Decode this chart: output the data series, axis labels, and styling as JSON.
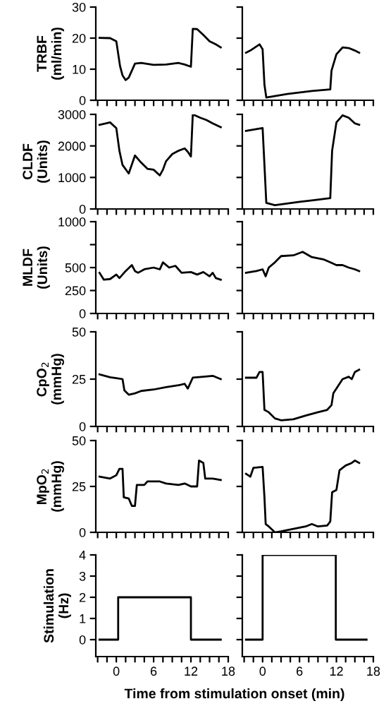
{
  "chart_data": [
    {
      "type": "line",
      "ylabel": "TRBF\n(ml/min)",
      "color": "#000000",
      "ylim": [
        0,
        30
      ],
      "yticks": [
        0,
        10,
        20,
        30
      ],
      "xlim": [
        -3.3,
        18
      ],
      "xticks": [
        {
          "value": -3,
          "label": null
        },
        {
          "value": -1.5,
          "label": null
        },
        0,
        {
          "value": 1.5,
          "label": null
        },
        {
          "value": 3,
          "label": null
        },
        {
          "value": 4.5,
          "label": null
        },
        6,
        {
          "value": 7.5,
          "label": null
        },
        {
          "value": 9,
          "label": null
        },
        {
          "value": 10.5,
          "label": null
        },
        12,
        {
          "value": 13.5,
          "label": null
        },
        {
          "value": 15,
          "label": null
        },
        {
          "value": 16.5,
          "label": null
        },
        18
      ],
      "tick_labels": "y",
      "grid": false,
      "marker": "none",
      "line_style": "solid",
      "x": [
        -2.7,
        -1,
        0,
        0.6,
        1,
        1.5,
        2,
        2.5,
        3,
        4,
        6,
        8,
        10,
        11,
        12,
        12.3,
        13,
        14,
        15,
        16,
        16.8
      ],
      "values": [
        20.1,
        20,
        19,
        11,
        8,
        6.5,
        7.3,
        9.5,
        11.8,
        12,
        11.4,
        11.5,
        12,
        11.5,
        10.8,
        23,
        22.9,
        21,
        19,
        18,
        17
      ]
    },
    {
      "type": "line",
      "color": "#000000",
      "ylim": [
        0,
        30
      ],
      "yticks": [
        0,
        10,
        20,
        30
      ],
      "xlim": [
        -3.3,
        18
      ],
      "xticks": [
        {
          "value": -3,
          "label": null
        },
        {
          "value": -1.5,
          "label": null
        },
        0,
        {
          "value": 1.5,
          "label": null
        },
        {
          "value": 3,
          "label": null
        },
        {
          "value": 4.5,
          "label": null
        },
        6,
        {
          "value": 7.5,
          "label": null
        },
        {
          "value": 9,
          "label": null
        },
        {
          "value": 10.5,
          "label": null
        },
        12,
        {
          "value": 13.5,
          "label": null
        },
        {
          "value": 15,
          "label": null
        },
        {
          "value": 16.5,
          "label": null
        },
        18
      ],
      "tick_labels": false,
      "grid": false,
      "marker": "none",
      "line_style": "solid",
      "x": [
        -2.7,
        -2,
        -0.5,
        0,
        0.3,
        0.6,
        4,
        8,
        11,
        11.2,
        12,
        13,
        14,
        15,
        15.7
      ],
      "values": [
        15.3,
        16,
        18,
        16.4,
        5,
        0.9,
        2,
        3,
        3.5,
        9.5,
        14.8,
        17,
        16.8,
        16,
        15.3
      ]
    },
    {
      "type": "line",
      "ylabel": "CLDF\n(Units)",
      "color": "#000000",
      "ylim": [
        0,
        3000
      ],
      "yticks": [
        0,
        1000,
        2000,
        3000
      ],
      "xlim": [
        -3.3,
        18
      ],
      "xticks": [
        {
          "value": -3,
          "label": null
        },
        {
          "value": -1.5,
          "label": null
        },
        0,
        {
          "value": 1.5,
          "label": null
        },
        {
          "value": 3,
          "label": null
        },
        {
          "value": 4.5,
          "label": null
        },
        6,
        {
          "value": 7.5,
          "label": null
        },
        {
          "value": 9,
          "label": null
        },
        {
          "value": 10.5,
          "label": null
        },
        12,
        {
          "value": 13.5,
          "label": null
        },
        {
          "value": 15,
          "label": null
        },
        {
          "value": 16.5,
          "label": null
        },
        18
      ],
      "tick_labels": "y",
      "grid": false,
      "marker": "none",
      "line_style": "solid",
      "x": [
        -2.7,
        -1,
        0,
        0.5,
        1,
        2,
        3,
        4,
        5,
        6,
        7,
        7.5,
        8,
        9,
        10,
        11,
        11.5,
        12,
        12.3,
        13.5,
        14.5,
        15.5,
        16.8
      ],
      "values": [
        2670,
        2745,
        2565,
        1845,
        1395,
        1125,
        1695,
        1470,
        1275,
        1245,
        1065,
        1245,
        1515,
        1740,
        1845,
        1920,
        1815,
        1665,
        3000,
        2895,
        2820,
        2715,
        2595
      ]
    },
    {
      "type": "line",
      "color": "#000000",
      "ylim": [
        0,
        3000
      ],
      "yticks": [
        0,
        1000,
        2000,
        3000
      ],
      "xlim": [
        -3.3,
        18
      ],
      "xticks": [
        {
          "value": -3,
          "label": null
        },
        {
          "value": -1.5,
          "label": null
        },
        0,
        {
          "value": 1.5,
          "label": null
        },
        {
          "value": 3,
          "label": null
        },
        {
          "value": 4.5,
          "label": null
        },
        6,
        {
          "value": 7.5,
          "label": null
        },
        {
          "value": 9,
          "label": null
        },
        {
          "value": 10.5,
          "label": null
        },
        12,
        {
          "value": 13.5,
          "label": null
        },
        {
          "value": 15,
          "label": null
        },
        {
          "value": 16.5,
          "label": null
        },
        18
      ],
      "tick_labels": false,
      "grid": false,
      "marker": "none",
      "line_style": "solid",
      "x": [
        -2.7,
        0,
        0.3,
        0.6,
        2,
        6,
        8,
        11,
        11.3,
        12,
        13,
        14,
        15,
        15.7
      ],
      "values": [
        2475,
        2565,
        1395,
        195,
        120,
        225,
        270,
        345,
        1845,
        2745,
        2970,
        2895,
        2715,
        2670
      ]
    },
    {
      "type": "line",
      "ylabel": "MLDF\n(Units)",
      "color": "#000000",
      "ylim": [
        0,
        1000
      ],
      "yticks": [
        0,
        250,
        500,
        {
          "value": 750,
          "label": null
        },
        1000
      ],
      "xlim": [
        -3.3,
        18
      ],
      "xticks": [
        {
          "value": -3,
          "label": null
        },
        {
          "value": -1.5,
          "label": null
        },
        0,
        {
          "value": 1.5,
          "label": null
        },
        {
          "value": 3,
          "label": null
        },
        {
          "value": 4.5,
          "label": null
        },
        6,
        {
          "value": 7.5,
          "label": null
        },
        {
          "value": 9,
          "label": null
        },
        {
          "value": 10.5,
          "label": null
        },
        12,
        {
          "value": 13.5,
          "label": null
        },
        {
          "value": 15,
          "label": null
        },
        {
          "value": 16.5,
          "label": null
        },
        18
      ],
      "tick_labels": "y",
      "grid": false,
      "marker": "none",
      "line_style": "solid",
      "x": [
        -2.7,
        -2,
        -1,
        0,
        0.5,
        1.5,
        2.5,
        3,
        3.5,
        4.5,
        6,
        7,
        7.5,
        8.5,
        9.5,
        10.5,
        12,
        13,
        14,
        15,
        15.5,
        16,
        16.8
      ],
      "values": [
        443,
        368,
        375,
        424,
        386,
        462,
        527,
        462,
        443,
        481,
        500,
        481,
        557,
        500,
        519,
        443,
        451,
        424,
        451,
        405,
        443,
        386,
        368
      ]
    },
    {
      "type": "line",
      "color": "#000000",
      "ylim": [
        0,
        1000
      ],
      "yticks": [
        0,
        250,
        500,
        {
          "value": 750,
          "label": null
        },
        1000
      ],
      "xlim": [
        -3.3,
        18
      ],
      "xticks": [
        {
          "value": -3,
          "label": null
        },
        {
          "value": -1.5,
          "label": null
        },
        0,
        {
          "value": 1.5,
          "label": null
        },
        {
          "value": 3,
          "label": null
        },
        {
          "value": 4.5,
          "label": null
        },
        6,
        {
          "value": 7.5,
          "label": null
        },
        {
          "value": 9,
          "label": null
        },
        {
          "value": 10.5,
          "label": null
        },
        12,
        {
          "value": 13.5,
          "label": null
        },
        {
          "value": 15,
          "label": null
        },
        {
          "value": 16.5,
          "label": null
        },
        18
      ],
      "tick_labels": false,
      "grid": false,
      "marker": "none",
      "line_style": "solid",
      "x": [
        -2.7,
        -1,
        0,
        0.5,
        1,
        2,
        3,
        5,
        6.5,
        8,
        10,
        11,
        12,
        13,
        14,
        15,
        15.7
      ],
      "values": [
        443,
        462,
        481,
        405,
        500,
        557,
        625,
        633,
        671,
        614,
        587,
        557,
        527,
        527,
        500,
        481,
        462
      ]
    },
    {
      "type": "line",
      "ylabel": "CpO$_{2}$\n(mmHg)",
      "color": "#000000",
      "ylim": [
        0,
        50
      ],
      "yticks": [
        0,
        25,
        50
      ],
      "xlim": [
        -3.3,
        18
      ],
      "xticks": [
        {
          "value": -3,
          "label": null
        },
        {
          "value": -1.5,
          "label": null
        },
        0,
        {
          "value": 1.5,
          "label": null
        },
        {
          "value": 3,
          "label": null
        },
        {
          "value": 4.5,
          "label": null
        },
        6,
        {
          "value": 7.5,
          "label": null
        },
        {
          "value": 9,
          "label": null
        },
        {
          "value": 10.5,
          "label": null
        },
        12,
        {
          "value": 13.5,
          "label": null
        },
        {
          "value": 15,
          "label": null
        },
        {
          "value": 16.5,
          "label": null
        },
        18
      ],
      "tick_labels": "y",
      "grid": false,
      "marker": "none",
      "line_style": "solid",
      "x": [
        -2.7,
        -1,
        0,
        1,
        1.3,
        2,
        3,
        4,
        6,
        8,
        10,
        11,
        11.5,
        12.3,
        14,
        15.5,
        16.8
      ],
      "values": [
        27.5,
        26,
        25.5,
        25,
        19,
        16.75,
        17.5,
        18.75,
        19.5,
        20.75,
        21.75,
        22.5,
        20,
        25.75,
        26.25,
        26.75,
        25
      ]
    },
    {
      "type": "line",
      "color": "#000000",
      "ylim": [
        0,
        50
      ],
      "yticks": [
        0,
        25,
        50
      ],
      "xlim": [
        -3.3,
        18
      ],
      "xticks": [
        {
          "value": -3,
          "label": null
        },
        {
          "value": -1.5,
          "label": null
        },
        0,
        {
          "value": 1.5,
          "label": null
        },
        {
          "value": 3,
          "label": null
        },
        {
          "value": 4.5,
          "label": null
        },
        6,
        {
          "value": 7.5,
          "label": null
        },
        {
          "value": 9,
          "label": null
        },
        {
          "value": 10.5,
          "label": null
        },
        12,
        {
          "value": 13.5,
          "label": null
        },
        {
          "value": 15,
          "label": null
        },
        {
          "value": 16.5,
          "label": null
        },
        18
      ],
      "tick_labels": false,
      "grid": false,
      "marker": "none",
      "line_style": "solid",
      "x": [
        -2.7,
        -1,
        -0.5,
        0,
        0.3,
        1,
        2,
        3,
        5,
        7,
        9,
        10.5,
        11.2,
        11.5,
        13,
        14,
        14.5,
        15,
        15.7
      ],
      "values": [
        25.75,
        25.75,
        28.75,
        28.75,
        8.75,
        7.5,
        4.25,
        3.25,
        3.75,
        5.75,
        7.5,
        8.75,
        11.25,
        17.5,
        25,
        26.25,
        25,
        28.75,
        30
      ]
    },
    {
      "type": "line",
      "ylabel": "MpO$_{2}$\n(mmHg)",
      "color": "#000000",
      "ylim": [
        0,
        50
      ],
      "yticks": [
        0,
        25,
        50
      ],
      "xlim": [
        -3.3,
        18
      ],
      "xticks": [
        {
          "value": -3,
          "label": null
        },
        {
          "value": -1.5,
          "label": null
        },
        0,
        {
          "value": 1.5,
          "label": null
        },
        {
          "value": 3,
          "label": null
        },
        {
          "value": 4.5,
          "label": null
        },
        6,
        {
          "value": 7.5,
          "label": null
        },
        {
          "value": 9,
          "label": null
        },
        {
          "value": 10.5,
          "label": null
        },
        12,
        {
          "value": 13.5,
          "label": null
        },
        {
          "value": 15,
          "label": null
        },
        {
          "value": 16.5,
          "label": null
        },
        18
      ],
      "tick_labels": "y",
      "grid": false,
      "marker": "none",
      "line_style": "solid",
      "x": [
        -2.7,
        -1,
        0,
        0.5,
        1,
        1.2,
        2,
        2.5,
        3,
        3.3,
        4.5,
        5,
        7,
        8,
        10,
        11,
        12,
        13,
        13.3,
        14,
        14.3,
        15.5,
        16.8
      ],
      "values": [
        30.3,
        29.3,
        31.1,
        34.6,
        34.6,
        19.1,
        18.4,
        14.4,
        14.4,
        25.8,
        25.8,
        27.7,
        27.7,
        26.6,
        25.8,
        26.6,
        25,
        25,
        39.1,
        37.8,
        29.3,
        29.3,
        28.5
      ]
    },
    {
      "type": "line",
      "color": "#000000",
      "ylim": [
        0,
        50
      ],
      "yticks": [
        0,
        25,
        50
      ],
      "xlim": [
        -3.3,
        18
      ],
      "xticks": [
        {
          "value": -3,
          "label": null
        },
        {
          "value": -1.5,
          "label": null
        },
        0,
        {
          "value": 1.5,
          "label": null
        },
        {
          "value": 3,
          "label": null
        },
        {
          "value": 4.5,
          "label": null
        },
        6,
        {
          "value": 7.5,
          "label": null
        },
        {
          "value": 9,
          "label": null
        },
        {
          "value": 10.5,
          "label": null
        },
        12,
        {
          "value": 13.5,
          "label": null
        },
        {
          "value": 15,
          "label": null
        },
        {
          "value": 16.5,
          "label": null
        },
        18
      ],
      "tick_labels": false,
      "grid": false,
      "marker": "none",
      "line_style": "solid",
      "x": [
        -2.7,
        -2,
        -1.5,
        0,
        0.3,
        0.5,
        1,
        2,
        3,
        5,
        7,
        8,
        9,
        10.5,
        11,
        11.3,
        12,
        12.5,
        13.5,
        14.5,
        15,
        15.7
      ],
      "values": [
        31.9,
        30.3,
        35.1,
        35.6,
        19.1,
        4.5,
        3.2,
        0,
        0.5,
        1.9,
        3.2,
        4.5,
        3.2,
        3.7,
        5.9,
        21.8,
        23.1,
        33.8,
        36.4,
        37.8,
        39.1,
        37.8
      ]
    },
    {
      "type": "line",
      "ylabel": "Stimulation\n(Hz)",
      "xlabel": "Time from stimulation onset (min)",
      "color": "#000000",
      "ylim": [
        -0.8,
        4
      ],
      "yticks": [
        0,
        1,
        2,
        3,
        4
      ],
      "xlim": [
        -3.3,
        18
      ],
      "xticks": [
        {
          "value": -3,
          "label": null
        },
        {
          "value": -1.5,
          "label": null
        },
        0,
        {
          "value": 1.5,
          "label": null
        },
        {
          "value": 3,
          "label": null
        },
        {
          "value": 4.5,
          "label": null
        },
        6,
        {
          "value": 7.5,
          "label": null
        },
        {
          "value": 9,
          "label": null
        },
        {
          "value": 10.5,
          "label": null
        },
        12,
        {
          "value": 13.5,
          "label": null
        },
        {
          "value": 15,
          "label": null
        },
        {
          "value": 16.5,
          "label": null
        },
        18
      ],
      "grid": false,
      "marker": "none",
      "line_style": "solid",
      "x": [
        -2.7,
        0.3,
        0.3,
        12,
        12,
        16.8
      ],
      "values": [
        0,
        0,
        2,
        2,
        0,
        0
      ]
    },
    {
      "type": "line",
      "color": "#000000",
      "ylim": [
        -0.8,
        4
      ],
      "yticks": [
        0,
        1,
        2,
        3,
        4
      ],
      "xlim": [
        -3.3,
        18
      ],
      "xticks": [
        {
          "value": -3,
          "label": null
        },
        {
          "value": -1.5,
          "label": null
        },
        0,
        {
          "value": 1.5,
          "label": null
        },
        {
          "value": 3,
          "label": null
        },
        {
          "value": 4.5,
          "label": null
        },
        6,
        {
          "value": 7.5,
          "label": null
        },
        {
          "value": 9,
          "label": null
        },
        {
          "value": 10.5,
          "label": null
        },
        12,
        {
          "value": 13.5,
          "label": null
        },
        {
          "value": 15,
          "label": null
        },
        {
          "value": 16.5,
          "label": null
        },
        18
      ],
      "tick_labels": "x",
      "grid": false,
      "marker": "none",
      "line_style": "solid",
      "x": [
        -2.7,
        0,
        0,
        11.9,
        11.9,
        16.9
      ],
      "values": [
        0,
        0,
        4,
        4,
        0,
        0
      ]
    }
  ]
}
